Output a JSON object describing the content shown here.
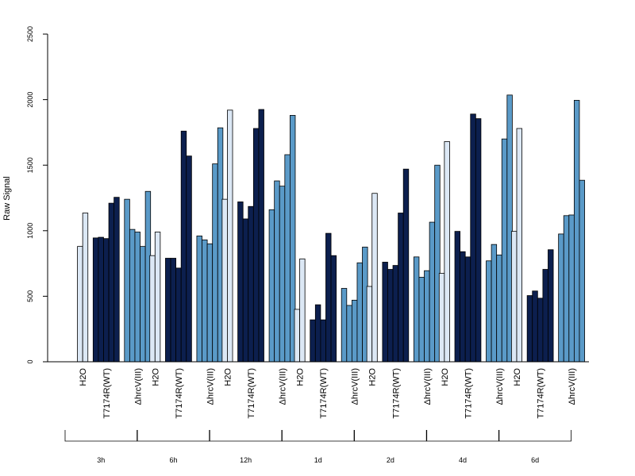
{
  "chart_data": {
    "type": "bar",
    "ylabel": "Raw Signal",
    "ylim": [
      0,
      2500
    ],
    "yticks": [
      0,
      500,
      1000,
      1500,
      2000,
      2500
    ],
    "colors": {
      "H2O": "#dce8f5",
      "T7174R(WT)": "#0c1f4e",
      "ΔhrcV(III)": "#5a9ac8"
    },
    "time_groups": [
      {
        "label": "3h",
        "conditions": [
          {
            "name": "H2O",
            "values": [
              880,
              1135
            ]
          },
          {
            "name": "T7174R(WT)",
            "values": [
              945,
              950,
              940,
              1210,
              1255
            ]
          },
          {
            "name": "ΔhrcV(III)",
            "values": [
              1240,
              1010,
              990,
              880,
              1300
            ]
          }
        ]
      },
      {
        "label": "6h",
        "conditions": [
          {
            "name": "H2O",
            "values": [
              810,
              990
            ]
          },
          {
            "name": "T7174R(WT)",
            "values": [
              790,
              790,
              715,
              1760,
              1570
            ]
          },
          {
            "name": "ΔhrcV(III)",
            "values": [
              960,
              930,
              900,
              1510,
              1785
            ]
          }
        ]
      },
      {
        "label": "12h",
        "conditions": [
          {
            "name": "H2O",
            "values": [
              1240,
              1920
            ]
          },
          {
            "name": "T7174R(WT)",
            "values": [
              1220,
              1090,
              1185,
              1780,
              1925
            ]
          },
          {
            "name": "ΔhrcV(III)",
            "values": [
              1160,
              1380,
              1340,
              1580,
              1880
            ]
          }
        ]
      },
      {
        "label": "1d",
        "conditions": [
          {
            "name": "H2O",
            "values": [
              400,
              785
            ]
          },
          {
            "name": "T7174R(WT)",
            "values": [
              320,
              435,
              320,
              980,
              810
            ]
          },
          {
            "name": "ΔhrcV(III)",
            "values": [
              560,
              430,
              470,
              755,
              875
            ]
          }
        ]
      },
      {
        "label": "2d",
        "conditions": [
          {
            "name": "H2O",
            "values": [
              575,
              1285
            ]
          },
          {
            "name": "T7174R(WT)",
            "values": [
              760,
              705,
              735,
              1135,
              1470
            ]
          },
          {
            "name": "ΔhrcV(III)",
            "values": [
              800,
              645,
              695,
              1065,
              1500
            ]
          }
        ]
      },
      {
        "label": "4d",
        "conditions": [
          {
            "name": "H2O",
            "values": [
              675,
              1680
            ]
          },
          {
            "name": "T7174R(WT)",
            "values": [
              995,
              840,
              800,
              1890,
              1855
            ]
          },
          {
            "name": "ΔhrcV(III)",
            "values": [
              770,
              895,
              815,
              1700,
              2035
            ]
          }
        ]
      },
      {
        "label": "6d",
        "conditions": [
          {
            "name": "H2O",
            "values": [
              995,
              1780
            ]
          },
          {
            "name": "T7174R(WT)",
            "values": [
              505,
              540,
              485,
              705,
              855
            ]
          },
          {
            "name": "ΔhrcV(III)",
            "values": [
              975,
              1115,
              1120,
              1995,
              1385
            ]
          }
        ]
      }
    ],
    "grid": false,
    "legend": "none"
  }
}
